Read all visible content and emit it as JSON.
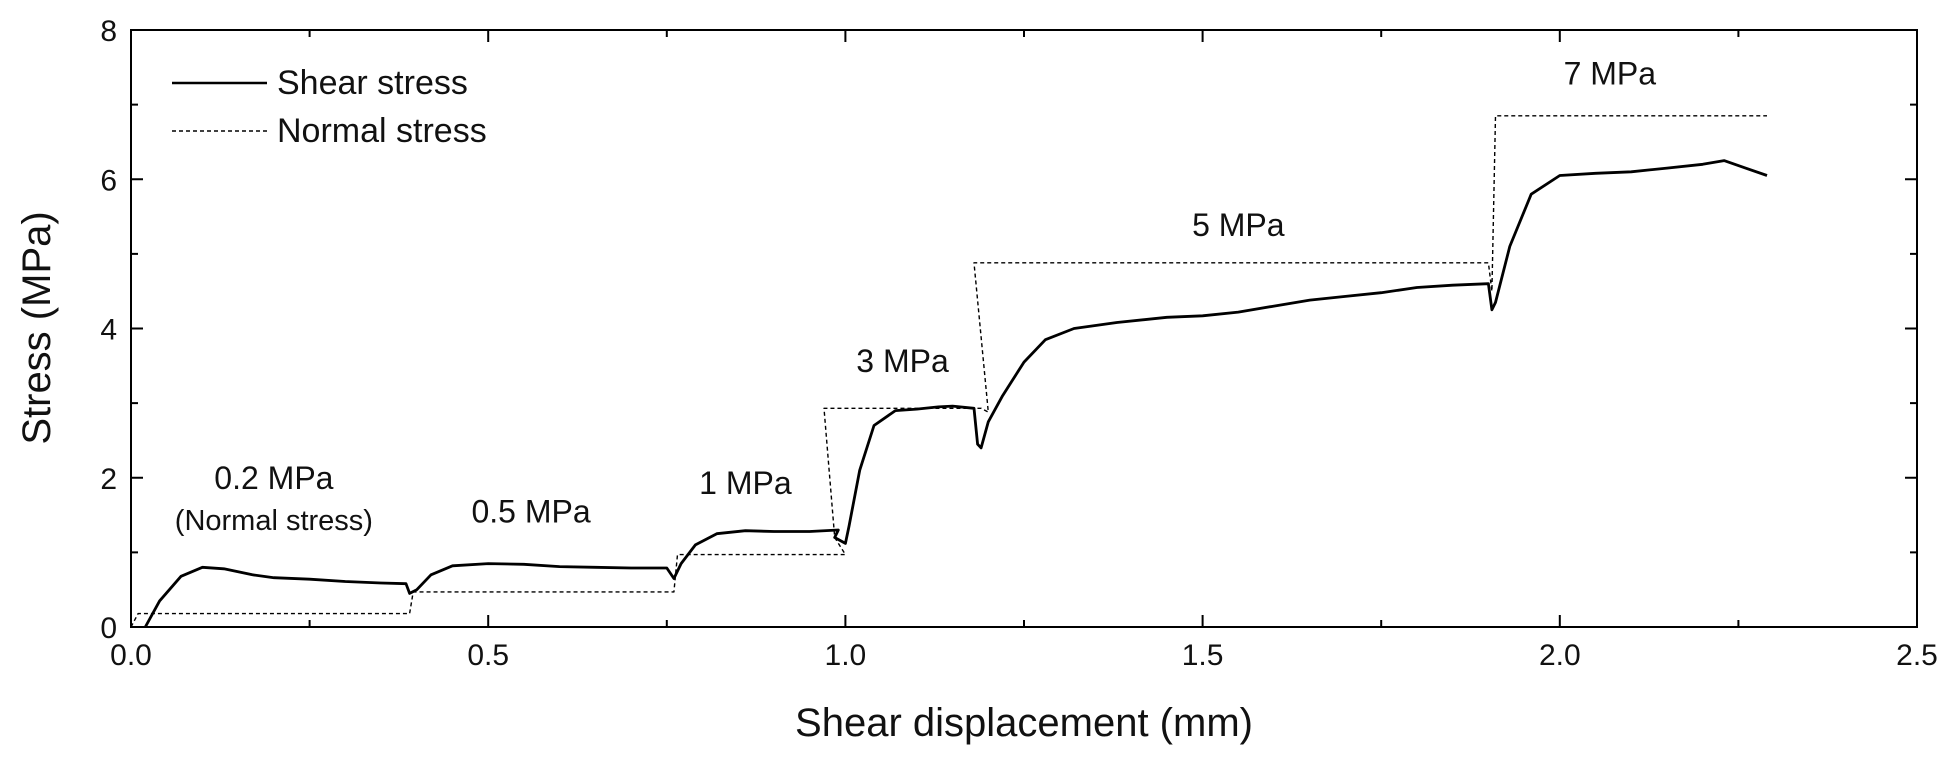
{
  "chart_data": {
    "type": "line",
    "xlabel": "Shear displacement (mm)",
    "ylabel": "Stress (MPa)",
    "xlim": [
      0.0,
      2.5
    ],
    "ylim": [
      0,
      8
    ],
    "xticks": [
      "0.0",
      "0.5",
      "1.0",
      "1.5",
      "2.0",
      "2.5"
    ],
    "yticks": [
      "0",
      "2",
      "4",
      "6",
      "8"
    ],
    "grid": false,
    "legend_position": "top-left",
    "series": [
      {
        "name": "Shear stress",
        "style": "solid",
        "color": "#000000",
        "points": [
          [
            0.02,
            0.0
          ],
          [
            0.04,
            0.35
          ],
          [
            0.07,
            0.68
          ],
          [
            0.1,
            0.8
          ],
          [
            0.13,
            0.78
          ],
          [
            0.17,
            0.7
          ],
          [
            0.2,
            0.66
          ],
          [
            0.25,
            0.64
          ],
          [
            0.3,
            0.61
          ],
          [
            0.35,
            0.59
          ],
          [
            0.385,
            0.58
          ],
          [
            0.39,
            0.45
          ],
          [
            0.4,
            0.5
          ],
          [
            0.42,
            0.7
          ],
          [
            0.45,
            0.82
          ],
          [
            0.5,
            0.85
          ],
          [
            0.55,
            0.84
          ],
          [
            0.6,
            0.81
          ],
          [
            0.65,
            0.8
          ],
          [
            0.7,
            0.79
          ],
          [
            0.75,
            0.79
          ],
          [
            0.76,
            0.65
          ],
          [
            0.77,
            0.85
          ],
          [
            0.79,
            1.1
          ],
          [
            0.82,
            1.25
          ],
          [
            0.86,
            1.29
          ],
          [
            0.9,
            1.28
          ],
          [
            0.95,
            1.28
          ],
          [
            0.99,
            1.3
          ],
          [
            0.985,
            1.2
          ],
          [
            1.0,
            1.12
          ],
          [
            1.005,
            1.35
          ],
          [
            1.02,
            2.1
          ],
          [
            1.04,
            2.7
          ],
          [
            1.07,
            2.9
          ],
          [
            1.1,
            2.92
          ],
          [
            1.13,
            2.95
          ],
          [
            1.15,
            2.96
          ],
          [
            1.18,
            2.93
          ],
          [
            1.185,
            2.45
          ],
          [
            1.19,
            2.4
          ],
          [
            1.2,
            2.75
          ],
          [
            1.22,
            3.1
          ],
          [
            1.25,
            3.55
          ],
          [
            1.28,
            3.85
          ],
          [
            1.32,
            4.0
          ],
          [
            1.38,
            4.08
          ],
          [
            1.45,
            4.15
          ],
          [
            1.5,
            4.17
          ],
          [
            1.55,
            4.22
          ],
          [
            1.6,
            4.3
          ],
          [
            1.65,
            4.38
          ],
          [
            1.7,
            4.43
          ],
          [
            1.75,
            4.48
          ],
          [
            1.8,
            4.55
          ],
          [
            1.85,
            4.58
          ],
          [
            1.9,
            4.6
          ],
          [
            1.905,
            4.25
          ],
          [
            1.91,
            4.35
          ],
          [
            1.93,
            5.1
          ],
          [
            1.96,
            5.8
          ],
          [
            2.0,
            6.05
          ],
          [
            2.05,
            6.08
          ],
          [
            2.1,
            6.1
          ],
          [
            2.15,
            6.15
          ],
          [
            2.2,
            6.2
          ],
          [
            2.23,
            6.25
          ],
          [
            2.26,
            6.15
          ],
          [
            2.29,
            6.05
          ]
        ]
      },
      {
        "name": "Normal stress",
        "style": "dashed",
        "color": "#000000",
        "points": [
          [
            0.0,
            0.0
          ],
          [
            0.01,
            0.18
          ],
          [
            0.39,
            0.18
          ],
          [
            0.395,
            0.47
          ],
          [
            0.76,
            0.47
          ],
          [
            0.765,
            0.97
          ],
          [
            1.0,
            0.97
          ],
          [
            0.985,
            1.2
          ],
          [
            0.97,
            2.93
          ],
          [
            1.19,
            2.93
          ],
          [
            1.2,
            2.88
          ],
          [
            1.18,
            4.88
          ],
          [
            1.9,
            4.88
          ],
          [
            1.905,
            4.5
          ],
          [
            1.91,
            6.85
          ],
          [
            2.29,
            6.85
          ]
        ]
      }
    ],
    "annotations": [
      {
        "text": "0.2 MPa",
        "x": 0.2,
        "y": 1.85
      },
      {
        "text": "(Normal stress)",
        "x": 0.2,
        "y": 1.3
      },
      {
        "text": "0.5 MPa",
        "x": 0.56,
        "y": 1.4
      },
      {
        "text": "1 MPa",
        "x": 0.86,
        "y": 1.78
      },
      {
        "text": "3 MPa",
        "x": 1.08,
        "y": 3.42
      },
      {
        "text": "5 MPa",
        "x": 1.55,
        "y": 5.24
      },
      {
        "text": "7 MPa",
        "x": 2.07,
        "y": 7.27
      }
    ]
  }
}
